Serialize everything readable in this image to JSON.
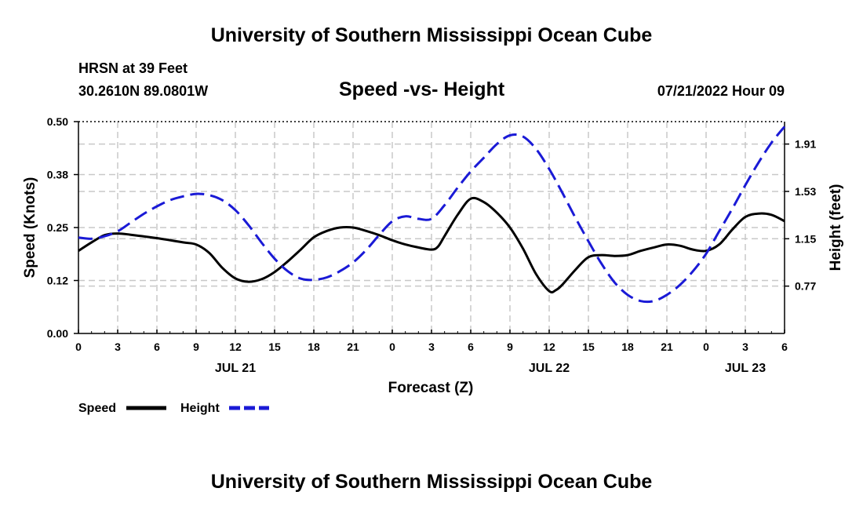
{
  "header": {
    "title": "University of Southern Mississippi Ocean Cube",
    "station": "HRSN at 39 Feet",
    "coords": "30.2610N  89.0801W",
    "date_hour": "07/21/2022 Hour 09"
  },
  "footer": {
    "title": "University of Southern Mississippi Ocean Cube"
  },
  "chart_data": {
    "type": "line",
    "title": "Speed -vs- Height",
    "xlabel": "Forecast (Z)",
    "ylabel": "Speed (Knots)",
    "y2label": "Height (feet)",
    "x_range": [
      0,
      54
    ],
    "x_tick_values": [
      0,
      3,
      6,
      9,
      12,
      15,
      18,
      21,
      24,
      27,
      30,
      33,
      36,
      39,
      42,
      45,
      48,
      51,
      54
    ],
    "x_tick_labels": [
      "0",
      "3",
      "6",
      "9",
      "12",
      "15",
      "18",
      "21",
      "0",
      "3",
      "6",
      "9",
      "12",
      "15",
      "18",
      "21",
      "0",
      "3",
      "6"
    ],
    "day_labels": [
      {
        "x": 12,
        "text": "JUL 21"
      },
      {
        "x": 36,
        "text": "JUL 22"
      },
      {
        "x": 51,
        "text": "JUL 23"
      }
    ],
    "ylim": [
      0,
      0.5
    ],
    "y_ticks": [
      "0.00",
      "0.12",
      "0.25",
      "0.38",
      "0.50"
    ],
    "y_tick_values": [
      0,
      0.125,
      0.25,
      0.375,
      0.5
    ],
    "y2lim": [
      0.39,
      2.09
    ],
    "y2_ticks": [
      "0.77",
      "1.15",
      "1.53",
      "1.91"
    ],
    "y2_tick_values": [
      0.77,
      1.15,
      1.53,
      1.91
    ],
    "grid": true,
    "legend": "bottom-left",
    "series": [
      {
        "name": "Speed",
        "axis": "left",
        "color": "#000000",
        "dash": "solid",
        "points": [
          [
            0,
            0.195
          ],
          [
            1,
            0.215
          ],
          [
            2,
            0.232
          ],
          [
            3,
            0.236
          ],
          [
            4,
            0.233
          ],
          [
            6,
            0.225
          ],
          [
            8,
            0.215
          ],
          [
            9,
            0.21
          ],
          [
            10,
            0.19
          ],
          [
            11,
            0.155
          ],
          [
            12,
            0.13
          ],
          [
            13,
            0.122
          ],
          [
            14,
            0.128
          ],
          [
            15,
            0.145
          ],
          [
            16,
            0.17
          ],
          [
            17,
            0.198
          ],
          [
            18,
            0.227
          ],
          [
            19,
            0.242
          ],
          [
            20,
            0.25
          ],
          [
            21,
            0.25
          ],
          [
            22,
            0.242
          ],
          [
            23,
            0.232
          ],
          [
            24,
            0.22
          ],
          [
            25,
            0.21
          ],
          [
            26,
            0.203
          ],
          [
            27,
            0.198
          ],
          [
            27.5,
            0.205
          ],
          [
            28,
            0.23
          ],
          [
            29,
            0.28
          ],
          [
            30,
            0.318
          ],
          [
            31,
            0.31
          ],
          [
            32,
            0.285
          ],
          [
            33,
            0.25
          ],
          [
            34,
            0.2
          ],
          [
            35,
            0.14
          ],
          [
            36,
            0.1
          ],
          [
            36.5,
            0.102
          ],
          [
            37,
            0.115
          ],
          [
            38,
            0.15
          ],
          [
            39,
            0.18
          ],
          [
            40,
            0.185
          ],
          [
            41,
            0.183
          ],
          [
            42,
            0.185
          ],
          [
            43,
            0.195
          ],
          [
            44,
            0.203
          ],
          [
            45,
            0.21
          ],
          [
            46,
            0.207
          ],
          [
            47,
            0.198
          ],
          [
            48,
            0.195
          ],
          [
            49,
            0.21
          ],
          [
            50,
            0.245
          ],
          [
            51,
            0.275
          ],
          [
            52,
            0.283
          ],
          [
            53,
            0.28
          ],
          [
            54,
            0.265
          ]
        ]
      },
      {
        "name": "Height",
        "axis": "right",
        "color": "#1a1ad6",
        "dash": "dashed",
        "points": [
          [
            0,
            1.16
          ],
          [
            1,
            1.15
          ],
          [
            2,
            1.17
          ],
          [
            3,
            1.21
          ],
          [
            4,
            1.28
          ],
          [
            5,
            1.35
          ],
          [
            6,
            1.41
          ],
          [
            7,
            1.46
          ],
          [
            8,
            1.49
          ],
          [
            9,
            1.51
          ],
          [
            10,
            1.5
          ],
          [
            11,
            1.46
          ],
          [
            12,
            1.38
          ],
          [
            13,
            1.26
          ],
          [
            14,
            1.12
          ],
          [
            15,
            0.99
          ],
          [
            16,
            0.89
          ],
          [
            17,
            0.83
          ],
          [
            18,
            0.82
          ],
          [
            19,
            0.84
          ],
          [
            20,
            0.89
          ],
          [
            21,
            0.96
          ],
          [
            22,
            1.06
          ],
          [
            23,
            1.18
          ],
          [
            24,
            1.29
          ],
          [
            25,
            1.33
          ],
          [
            26,
            1.31
          ],
          [
            27,
            1.31
          ],
          [
            28,
            1.42
          ],
          [
            29,
            1.56
          ],
          [
            30,
            1.69
          ],
          [
            31,
            1.8
          ],
          [
            32,
            1.91
          ],
          [
            33,
            1.98
          ],
          [
            34,
            1.97
          ],
          [
            35,
            1.87
          ],
          [
            36,
            1.71
          ],
          [
            37,
            1.52
          ],
          [
            38,
            1.32
          ],
          [
            39,
            1.13
          ],
          [
            40,
            0.95
          ],
          [
            41,
            0.8
          ],
          [
            42,
            0.7
          ],
          [
            43,
            0.65
          ],
          [
            44,
            0.65
          ],
          [
            45,
            0.7
          ],
          [
            46,
            0.78
          ],
          [
            47,
            0.89
          ],
          [
            48,
            1.03
          ],
          [
            49,
            1.21
          ],
          [
            50,
            1.39
          ],
          [
            51,
            1.58
          ],
          [
            52,
            1.76
          ],
          [
            53,
            1.92
          ],
          [
            54,
            2.05
          ]
        ]
      }
    ]
  }
}
